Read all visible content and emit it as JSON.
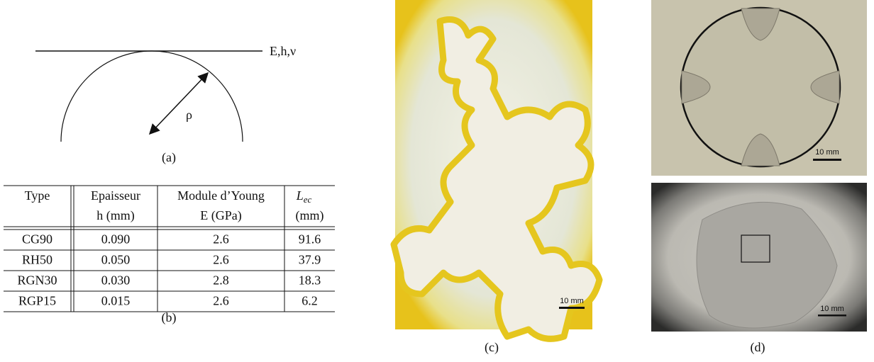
{
  "panel_a": {
    "line_label": "E,h,ν",
    "radius_label": "ρ",
    "caption": "(a)"
  },
  "table": {
    "headers": [
      {
        "lines": [
          "Type"
        ]
      },
      {
        "lines": [
          "Epaisseur",
          "h (mm)"
        ]
      },
      {
        "lines": [
          "Module d’Young",
          "E (GPa)"
        ]
      },
      {
        "main": "L",
        "sub": "ec",
        "lines": [
          "(mm)"
        ]
      }
    ],
    "rows": [
      [
        "CG90",
        "0.090",
        "2.6",
        "91.6"
      ],
      [
        "RH50",
        "0.050",
        "2.6",
        "37.9"
      ],
      [
        "RGN30",
        "0.030",
        "2.8",
        "18.3"
      ],
      [
        "RGP15",
        "0.015",
        "2.6",
        "6.2"
      ]
    ],
    "caption": "(b)"
  },
  "panel_c": {
    "scale_bar": "10 mm",
    "caption": "(c)"
  },
  "panel_d": {
    "top_scale_bar": "10 mm",
    "bottom_scale_bar": "10 mm",
    "caption": "(d)"
  }
}
